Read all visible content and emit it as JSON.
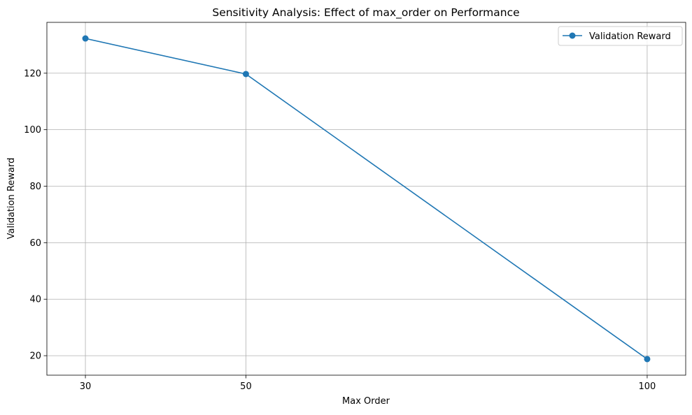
{
  "chart_data": {
    "type": "line",
    "title": "Sensitivity Analysis: Effect of max_order on Performance",
    "xlabel": "Max Order",
    "ylabel": "Validation Reward",
    "x": [
      30,
      50,
      100
    ],
    "series": [
      {
        "name": "Validation Reward",
        "values": [
          132.3,
          119.7,
          18.8
        ],
        "color": "#1f77b4",
        "marker": "circle"
      }
    ],
    "xticks": [
      30,
      50,
      100
    ],
    "yticks": [
      20,
      40,
      60,
      80,
      100,
      120
    ],
    "xlim": [
      25.2,
      104.8
    ],
    "ylim": [
      13.1,
      138.0
    ],
    "grid": true,
    "legend_position": "top-right"
  }
}
